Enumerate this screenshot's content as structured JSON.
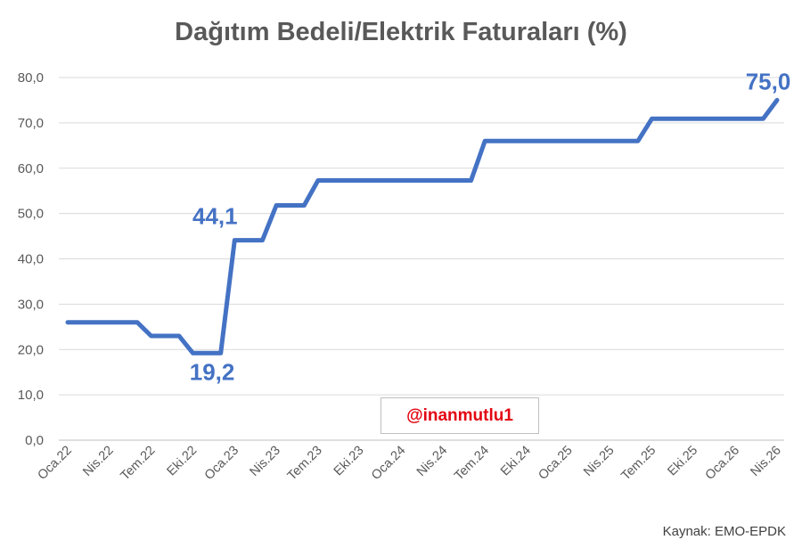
{
  "chart_data": {
    "type": "line",
    "title": "Dağıtım Bedeli/Elektrik Faturaları (%)",
    "xlabel": "",
    "ylabel": "",
    "ylim": [
      0,
      80
    ],
    "y_ticks": [
      "0,0",
      "10,0",
      "20,0",
      "30,0",
      "40,0",
      "50,0",
      "60,0",
      "70,0",
      "80,0"
    ],
    "grid": true,
    "x_tick_labels": [
      "Oca.22",
      "Nis.22",
      "Tem.22",
      "Eki.22",
      "Oca.23",
      "Nis.23",
      "Tem.23",
      "Eki.23",
      "Oca.24",
      "Nis.24",
      "Tem.24",
      "Eki.24",
      "Oca.25",
      "Nis.25",
      "Tem.25",
      "Eki.25",
      "Oca.26",
      "Nis.26"
    ],
    "series": [
      {
        "color": "#4472c4",
        "x": [
          "2022-01",
          "2022-02",
          "2022-03",
          "2022-04",
          "2022-05",
          "2022-06",
          "2022-07",
          "2022-08",
          "2022-09",
          "2022-10",
          "2022-11",
          "2022-12",
          "2023-01",
          "2023-02",
          "2023-03",
          "2023-04",
          "2023-05",
          "2023-06",
          "2023-07",
          "2023-08",
          "2023-09",
          "2023-10",
          "2023-11",
          "2023-12",
          "2024-01",
          "2024-02",
          "2024-03",
          "2024-04",
          "2024-05",
          "2024-06",
          "2024-07",
          "2024-08",
          "2024-09",
          "2024-10",
          "2024-11",
          "2024-12",
          "2025-01",
          "2025-02",
          "2025-03",
          "2025-04",
          "2025-05",
          "2025-06",
          "2025-07",
          "2025-08",
          "2025-09",
          "2025-10",
          "2025-11",
          "2025-12",
          "2026-01",
          "2026-02",
          "2026-03",
          "2026-04"
        ],
        "values": [
          26.0,
          26.0,
          26.0,
          26.0,
          26.0,
          26.0,
          23.0,
          23.0,
          23.0,
          19.2,
          19.2,
          19.2,
          44.1,
          44.1,
          44.1,
          51.8,
          51.8,
          51.8,
          57.3,
          57.3,
          57.3,
          57.3,
          57.3,
          57.3,
          57.3,
          57.3,
          57.3,
          57.3,
          57.3,
          57.3,
          66.0,
          66.0,
          66.0,
          66.0,
          66.0,
          66.0,
          66.0,
          66.0,
          66.0,
          66.0,
          66.0,
          66.0,
          70.9,
          70.9,
          70.9,
          70.9,
          70.9,
          70.9,
          70.9,
          70.9,
          70.9,
          75.0
        ]
      }
    ],
    "annotations": [
      {
        "text": "75,0",
        "index": 51
      },
      {
        "text": "44,1",
        "index": 12
      },
      {
        "text": "19,2",
        "index": 10
      }
    ],
    "watermark": "@inanmutlu1",
    "source": "Kaynak: EMO-EPDK"
  }
}
